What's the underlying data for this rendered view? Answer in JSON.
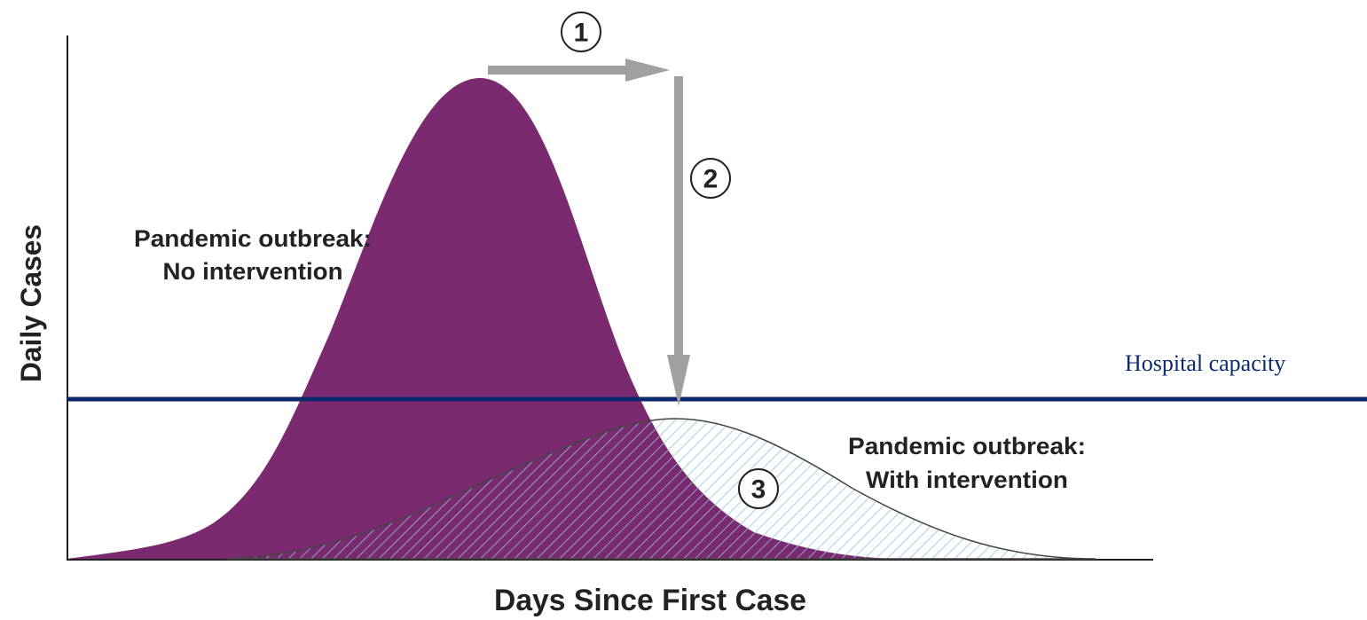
{
  "axes": {
    "y_label": "Daily Cases",
    "x_label": "Days Since First Case"
  },
  "curves": [
    {
      "label": [
        "Pandemic outbreak:",
        "No intervention"
      ]
    },
    {
      "label": [
        "Pandemic outbreak:",
        "With intervention"
      ]
    }
  ],
  "capacity_label": "Hospital capacity",
  "steps": [
    "1",
    "2",
    "3"
  ]
}
